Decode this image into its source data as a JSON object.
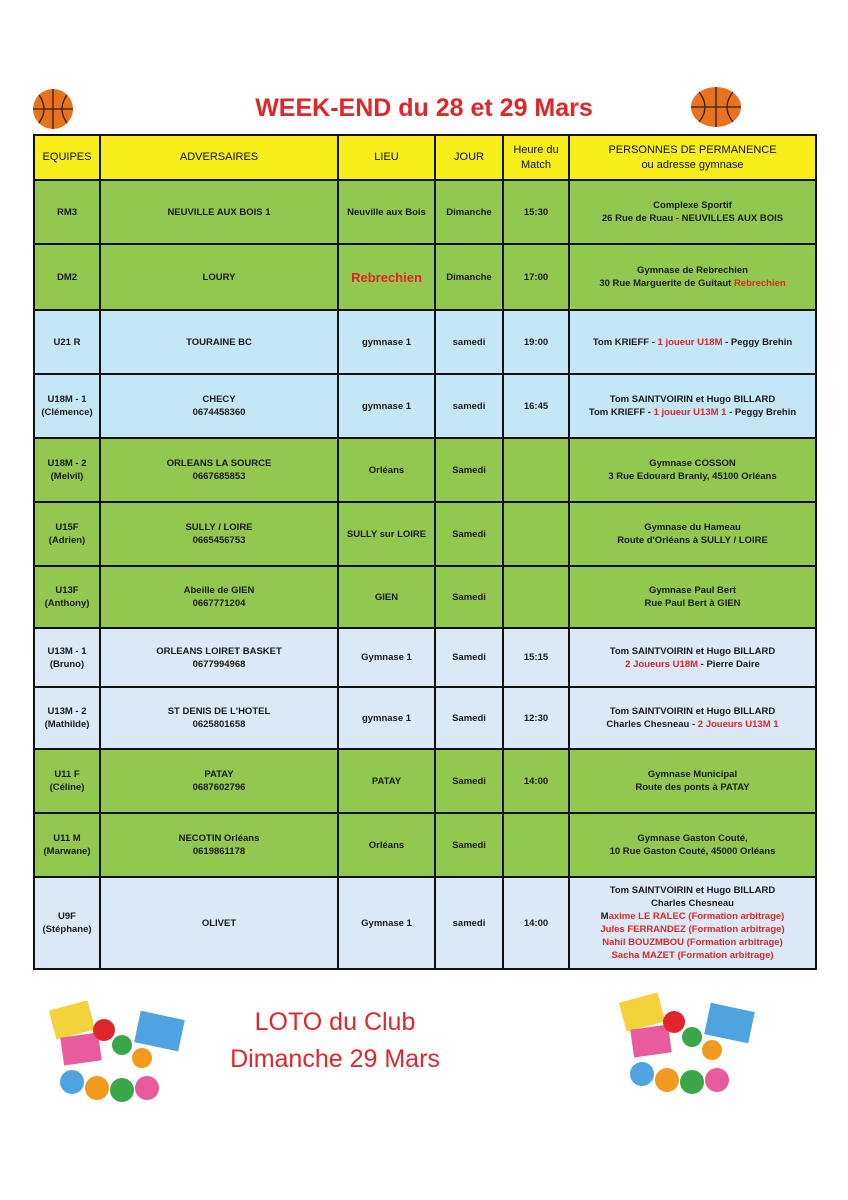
{
  "title": "WEEK-END du 28 et 29 Mars",
  "table": {
    "headers": [
      "EQUIPES",
      "ADVERSAIRES",
      "LIEU",
      "JOUR",
      "Heure du\nMatch",
      "PERSONNES DE PERMANENCE\nou adresse gymnase"
    ],
    "rows": [
      {
        "color": "green",
        "h": 64,
        "equipe": [
          "RM3"
        ],
        "adversaire": [
          "NEUVILLE AUX BOIS 1"
        ],
        "lieu": "Neuville aux Bois",
        "jour": "Dimanche",
        "heure": "15:30",
        "personnes": [
          [
            {
              "t": "Complexe Sportif"
            }
          ],
          [
            {
              "t": "26 Rue de Ruau - NEUVILLES AUX BOIS"
            }
          ]
        ]
      },
      {
        "color": "green",
        "h": 66,
        "equipe": [
          "DM2"
        ],
        "adversaire": [
          "LOURY"
        ],
        "lieu": "Rebrechien",
        "lieu_red": true,
        "jour": "Dimanche",
        "heure": "17:00",
        "personnes": [
          [
            {
              "t": "Gymnase de Rebrechien"
            }
          ],
          [
            {
              "t": "30 Rue Marguerite de Guitaut "
            },
            {
              "t": "Rebrechien",
              "r": true
            }
          ]
        ]
      },
      {
        "color": "blue",
        "h": 64,
        "equipe": [
          "U21 R"
        ],
        "adversaire": [
          "TOURAINE BC"
        ],
        "lieu": "gymnase 1",
        "jour": "samedi",
        "heure": "19:00",
        "personnes": [
          [
            {
              "t": "Tom KRIEFF - "
            },
            {
              "t": "1 joueur U18M",
              "r": true
            },
            {
              "t": " - Peggy Brehin"
            }
          ]
        ]
      },
      {
        "color": "blue",
        "h": 64,
        "equipe": [
          "U18M - 1",
          "(Clémence)"
        ],
        "adversaire": [
          "CHECY",
          "0674458360"
        ],
        "lieu": "gymnase 1",
        "jour": "samedi",
        "heure": "16:45",
        "personnes": [
          [
            {
              "t": "Tom SAINTVOIRIN et Hugo BILLARD"
            }
          ],
          [
            {
              "t": "Tom KRIEFF - "
            },
            {
              "t": "1 joueur U13M 1",
              "r": true
            },
            {
              "t": " - Peggy Brehin"
            }
          ]
        ]
      },
      {
        "color": "green",
        "h": 64,
        "equipe": [
          "U18M - 2",
          "(Melvil)"
        ],
        "adversaire": [
          "ORLEANS LA SOURCE",
          "0667685853"
        ],
        "lieu": "Orléans",
        "jour": "Samedi",
        "heure": "",
        "personnes": [
          [
            {
              "t": "Gymnase COSSON"
            }
          ],
          [
            {
              "t": "3 Rue Edouard Branly, 45100 Orléans"
            }
          ]
        ]
      },
      {
        "color": "green",
        "h": 64,
        "equipe": [
          "U15F",
          "(Adrien)"
        ],
        "adversaire": [
          "SULLY / LOIRE",
          "0665456753"
        ],
        "lieu": "SULLY sur LOIRE",
        "jour": "Samedi",
        "heure": "",
        "personnes": [
          [
            {
              "t": "Gymnase du Hameau"
            }
          ],
          [
            {
              "t": "Route d'Orléans à SULLY / LOIRE"
            }
          ]
        ]
      },
      {
        "color": "green",
        "h": 62,
        "equipe": [
          "U13F",
          "(Anthony)"
        ],
        "adversaire": [
          "Abeille de GIEN",
          "0667771204"
        ],
        "lieu": "GIEN",
        "jour": "Samedi",
        "heure": "",
        "personnes": [
          [
            {
              "t": "Gymnase Paul Bert"
            }
          ],
          [
            {
              "t": "Rue Paul Bert à GIEN"
            }
          ]
        ]
      },
      {
        "color": "pale",
        "h": 59,
        "equipe": [
          "U13M - 1",
          "(Bruno)"
        ],
        "adversaire": [
          "ORLEANS LOIRET BASKET",
          "0677994968"
        ],
        "lieu": "Gymnase 1",
        "jour": "Samedi",
        "heure": "15:15",
        "personnes": [
          [
            {
              "t": "Tom SAINTVOIRIN et Hugo BILLARD"
            }
          ],
          [
            {
              "t": "2 Joueurs U18M",
              "r": true
            },
            {
              "t": " - Pierre Daire"
            }
          ]
        ]
      },
      {
        "color": "pale",
        "h": 62,
        "equipe": [
          "U13M - 2",
          "(Mathilde)"
        ],
        "adversaire": [
          "ST DENIS DE L'HOTEL",
          "0625801658"
        ],
        "lieu": "gymnase 1",
        "jour": "Samedi",
        "heure": "12:30",
        "personnes": [
          [
            {
              "t": "Tom SAINTVOIRIN et Hugo BILLARD"
            }
          ],
          [
            {
              "t": "Charles Chesneau - "
            },
            {
              "t": "2 Joueurs U13M 1",
              "r": true
            }
          ]
        ]
      },
      {
        "color": "green",
        "h": 64,
        "equipe": [
          "U11 F",
          "(Céline)"
        ],
        "adversaire": [
          "PATAY",
          "0687602796"
        ],
        "lieu": "PATAY",
        "jour": "Samedi",
        "heure": "14:00",
        "personnes": [
          [
            {
              "t": "Gymnase Municipal"
            }
          ],
          [
            {
              "t": "Route des ponts à PATAY"
            }
          ]
        ]
      },
      {
        "color": "green",
        "h": 64,
        "equipe": [
          "U11 M",
          "(Marwane)"
        ],
        "adversaire": [
          "NECOTIN Orléans",
          "0619861178"
        ],
        "lieu": "Orléans",
        "jour": "Samedi",
        "heure": "",
        "personnes": [
          [
            {
              "t": "Gymnase Gaston Couté,"
            }
          ],
          [
            {
              "t": "10 Rue Gaston Couté, 45000 Orléans"
            }
          ]
        ]
      },
      {
        "color": "pale",
        "h": 92,
        "equipe": [
          "U9F",
          "(Stéphane)"
        ],
        "adversaire": [
          "OLIVET"
        ],
        "lieu": "Gymnase 1",
        "jour": "samedi",
        "heure": "14:00",
        "personnes": [
          [
            {
              "t": "Tom SAINTVOIRIN et Hugo BILLARD"
            }
          ],
          [
            {
              "t": "Charles Chesneau"
            }
          ],
          [
            {
              "t": "M"
            },
            {
              "t": "axime LE RALEC (Formation arbitrage)",
              "r": true
            }
          ],
          [
            {
              "t": "Jules FERRANDEZ (Formation arbitrage)",
              "r": true
            }
          ],
          [
            {
              "t": "Nahil BOUZMBOU (Formation arbitrage)",
              "r": true
            }
          ],
          [
            {
              "t": "Sacha MAZET (Formation arbitrage)",
              "r": true
            }
          ]
        ]
      }
    ]
  },
  "loto": {
    "line1": "LOTO du Club",
    "line2": "Dimanche 29 Mars",
    "image_text": "LOTO"
  },
  "colors": {
    "title": "#e0262a",
    "header": "#f8ef1a",
    "green": "#92c850",
    "blue": "#c4e7f6",
    "pale": "#dbe9f6"
  }
}
